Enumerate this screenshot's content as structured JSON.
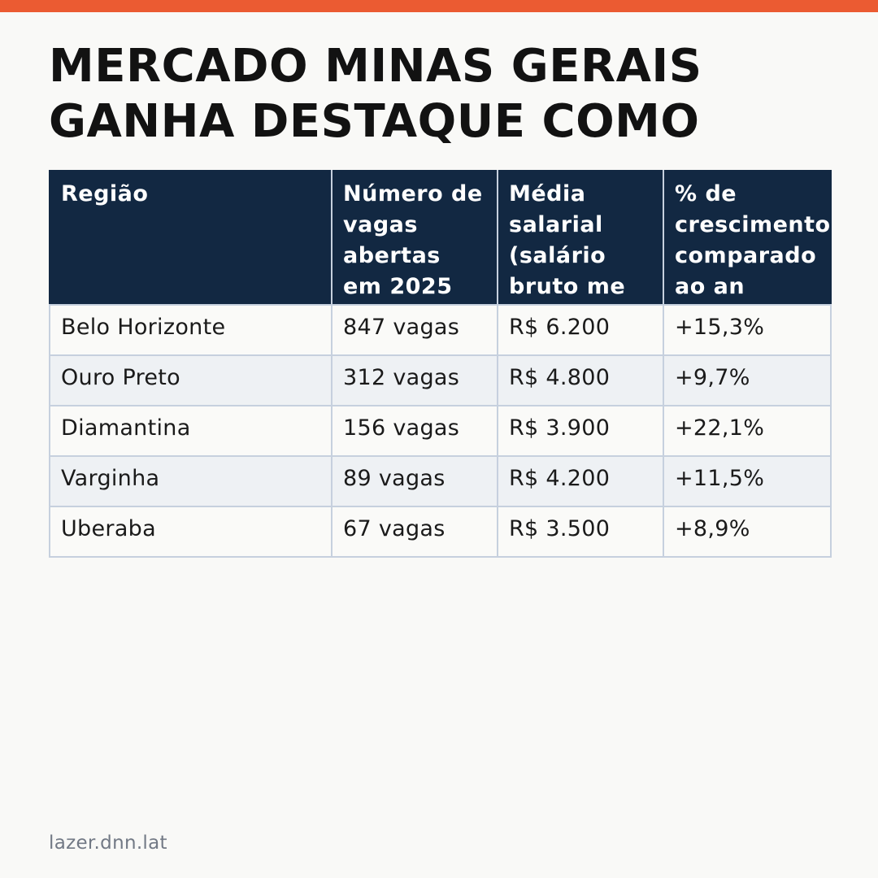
{
  "headline": {
    "line1": "MERCADO MINAS GERAIS",
    "line2": "GANHA DESTAQUE COMO"
  },
  "table": {
    "headers": [
      "Região",
      "Número de vagas abertas em 2025",
      "Média salarial (salário bruto me",
      "% de crescimento comparado ao an"
    ],
    "rows": [
      [
        "Belo Horizonte",
        "847 vagas",
        "R$ 6.200",
        "+15,3%"
      ],
      [
        "Ouro Preto",
        "312 vagas",
        "R$ 4.800",
        "+9,7%"
      ],
      [
        "Diamantina",
        "156 vagas",
        "R$ 3.900",
        "+22,1%"
      ],
      [
        "Varginha",
        "89 vagas",
        "R$ 4.200",
        "+11,5%"
      ],
      [
        "Uberaba",
        "67 vagas",
        "R$ 3.500",
        "+8,9%"
      ]
    ]
  },
  "footer": {
    "source": "lazer.dnn.lat"
  },
  "colors": {
    "accent": "#eb5b32",
    "header_bg": "#122842",
    "stripe_bg": "#eef1f4"
  }
}
